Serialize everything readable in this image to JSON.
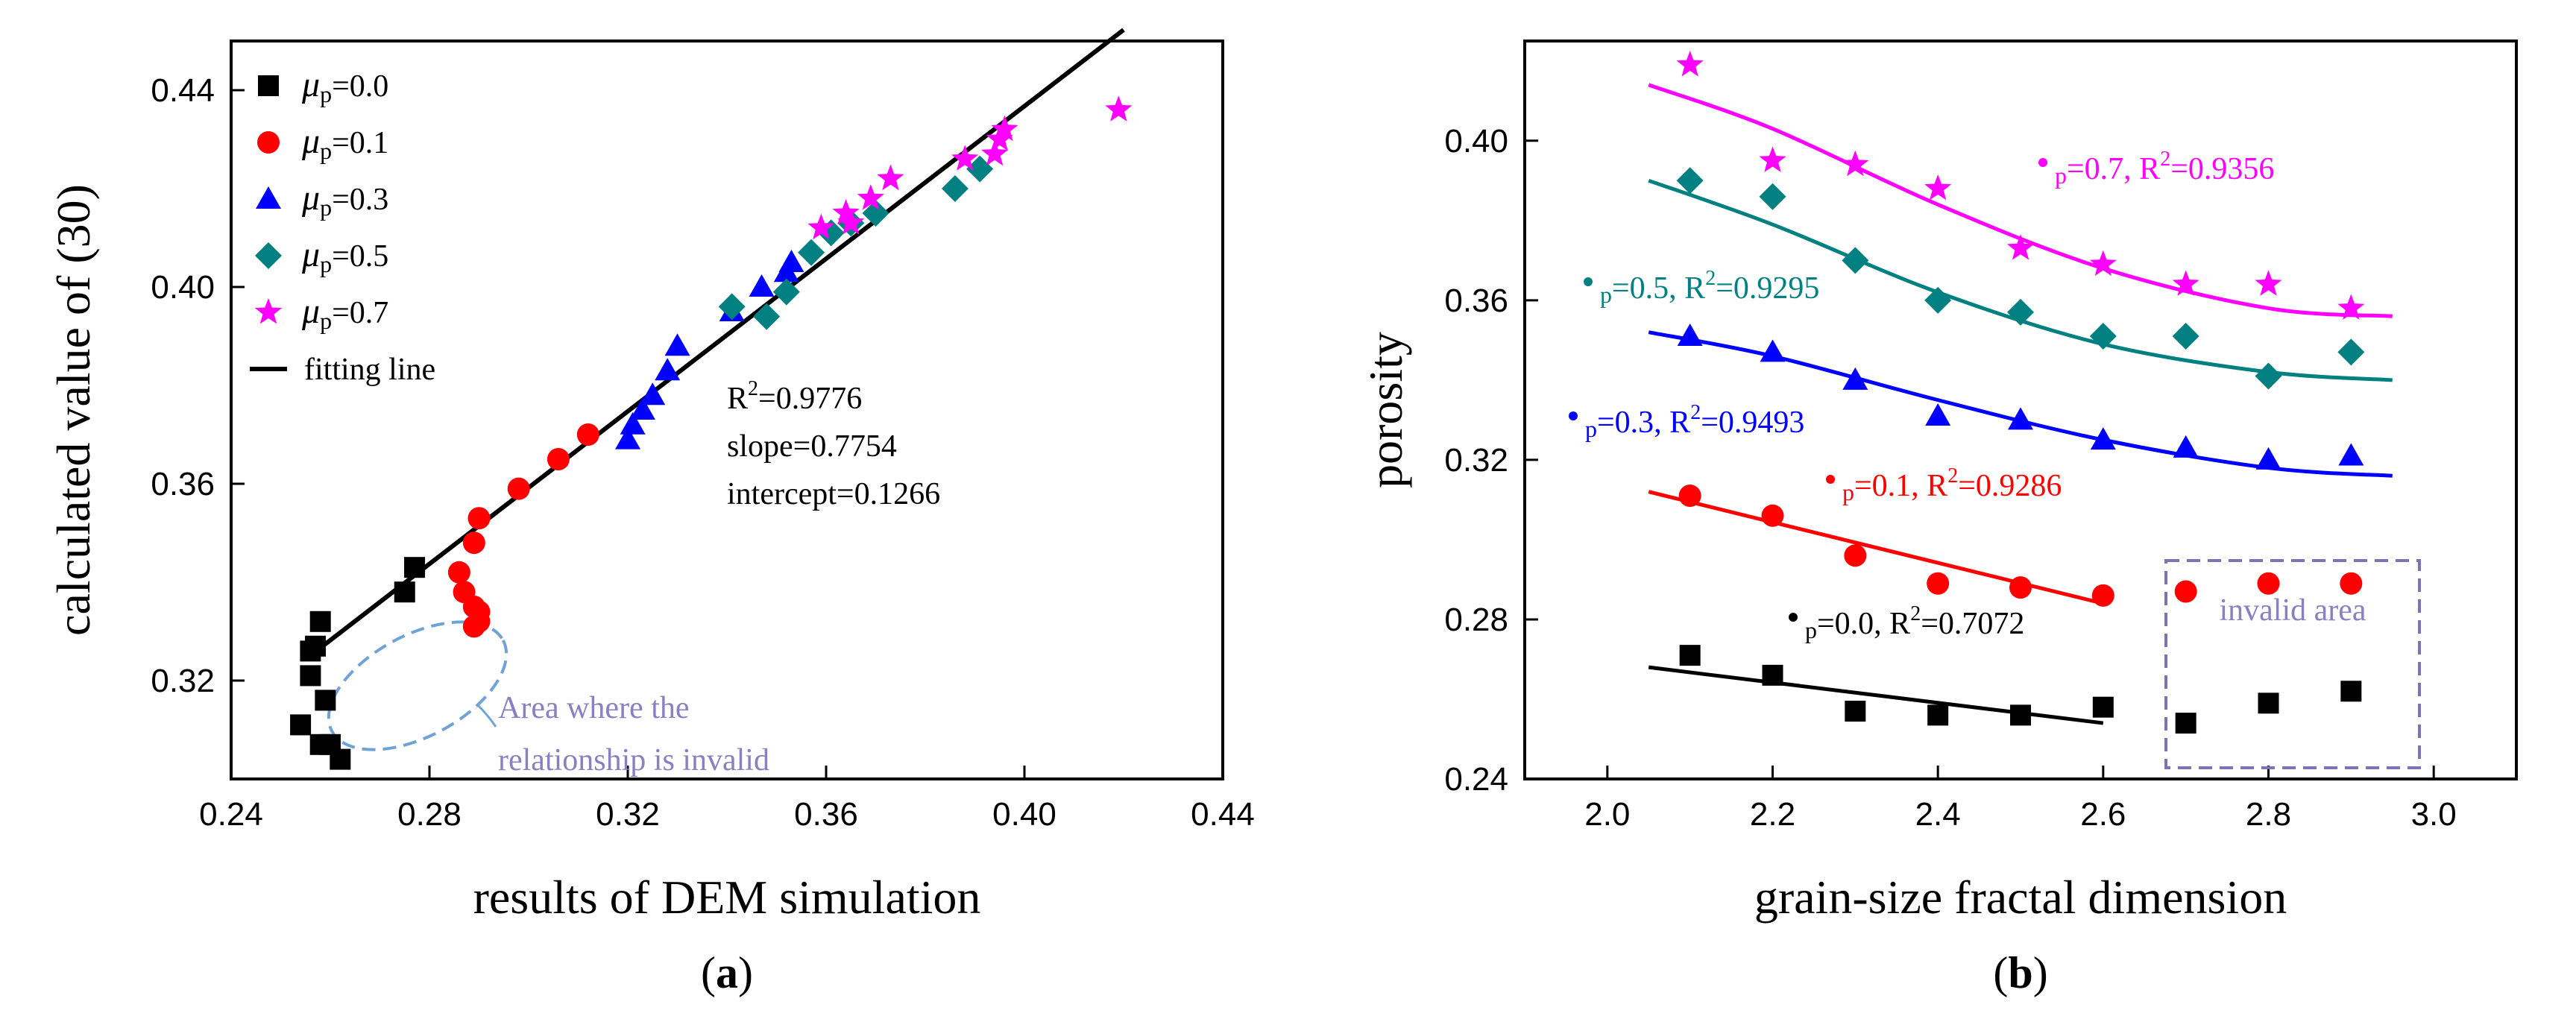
{
  "chart_data": [
    {
      "type": "scatter",
      "panel_label_open": "(",
      "panel_label_letter": "a",
      "panel_label_close": ")",
      "xlabel": "results of DEM simulation",
      "ylabel": "calculated value of (30)",
      "xlim": [
        0.24,
        0.44
      ],
      "ylim": [
        0.3,
        0.45
      ],
      "xticks": [
        "0.24",
        "0.28",
        "0.32",
        "0.36",
        "0.40",
        "0.44"
      ],
      "yticks": [
        "0.32",
        "0.36",
        "0.40",
        "0.44"
      ],
      "legend": [
        {
          "mu": "μ",
          "sub": "p",
          "value": "=0.0",
          "color": "#000000",
          "marker": "square"
        },
        {
          "mu": "μ",
          "sub": "p",
          "value": "=0.1",
          "color": "#ff0000",
          "marker": "circle"
        },
        {
          "mu": "μ",
          "sub": "p",
          "value": "=0.3",
          "color": "#0000ff",
          "marker": "triangle"
        },
        {
          "mu": "μ",
          "sub": "p",
          "value": "=0.5",
          "color": "#008080",
          "marker": "diamond"
        },
        {
          "mu": "μ",
          "sub": "p",
          "value": "=0.7",
          "color": "#ff00ff",
          "marker": "star"
        },
        {
          "label": "fitting line",
          "color": "#000000",
          "marker": "line"
        }
      ],
      "stats": {
        "r2_prefix": "R",
        "r2_sup": "2",
        "r2_value": "=0.9776",
        "slope": "slope=0.7754",
        "intercept": "intercept=0.1266"
      },
      "fit_line": {
        "slope": 0.7754,
        "intercept": 0.1266,
        "x_range": [
          0.256,
          0.42
        ]
      },
      "ellipse_note": [
        "Area where the",
        "relationship is invalid"
      ],
      "series": [
        {
          "name": "μp=0.0",
          "color": "#000000",
          "marker": "square",
          "x": [
            0.254,
            0.256,
            0.257,
            0.258,
            0.259,
            0.26,
            0.262,
            0.258,
            0.256,
            0.275,
            0.277
          ],
          "y": [
            0.311,
            0.321,
            0.327,
            0.332,
            0.316,
            0.307,
            0.304,
            0.307,
            0.326,
            0.338,
            0.343
          ]
        },
        {
          "name": "μp=0.1",
          "color": "#ff0000",
          "marker": "circle",
          "x": [
            0.286,
            0.287,
            0.289,
            0.29,
            0.29,
            0.289,
            0.289,
            0.29,
            0.298,
            0.306,
            0.312
          ],
          "y": [
            0.342,
            0.338,
            0.348,
            0.353,
            0.334,
            0.331,
            0.335,
            0.332,
            0.359,
            0.365,
            0.37
          ]
        },
        {
          "name": "μp=0.3",
          "color": "#0000ff",
          "marker": "triangle",
          "x": [
            0.32,
            0.321,
            0.323,
            0.325,
            0.328,
            0.33,
            0.341,
            0.347,
            0.352,
            0.353
          ],
          "y": [
            0.369,
            0.372,
            0.375,
            0.378,
            0.383,
            0.388,
            0.395,
            0.4,
            0.403,
            0.405
          ]
        },
        {
          "name": "μp=0.5",
          "color": "#008080",
          "marker": "diamond",
          "x": [
            0.341,
            0.348,
            0.352,
            0.357,
            0.361,
            0.365,
            0.37,
            0.386,
            0.391
          ],
          "y": [
            0.396,
            0.394,
            0.399,
            0.407,
            0.411,
            0.413,
            0.415,
            0.42,
            0.424
          ]
        },
        {
          "name": "μp=0.7",
          "color": "#ff00ff",
          "marker": "star",
          "x": [
            0.359,
            0.364,
            0.365,
            0.369,
            0.373,
            0.388,
            0.394,
            0.395,
            0.396,
            0.419
          ],
          "y": [
            0.412,
            0.415,
            0.413,
            0.418,
            0.422,
            0.426,
            0.427,
            0.43,
            0.432,
            0.436
          ]
        }
      ]
    },
    {
      "type": "scatter",
      "panel_label_open": "(",
      "panel_label_letter": "b",
      "panel_label_close": ")",
      "xlabel": "grain-size fractal dimension",
      "ylabel": "porosity",
      "xlim": [
        1.9,
        3.1
      ],
      "ylim": [
        0.24,
        0.425
      ],
      "xticks": [
        "2.0",
        "2.2",
        "2.4",
        "2.6",
        "2.8",
        "3.0"
      ],
      "yticks": [
        "0.24",
        "0.28",
        "0.32",
        "0.36",
        "0.40"
      ],
      "invalid_area_label": "invalid area",
      "series": [
        {
          "name": "μp=0.7",
          "color": "#ff00ff",
          "marker": "star",
          "x": [
            2.1,
            2.2,
            2.3,
            2.4,
            2.5,
            2.6,
            2.7,
            2.8,
            2.9
          ],
          "y": [
            0.419,
            0.395,
            0.394,
            0.388,
            0.373,
            0.369,
            0.364,
            0.364,
            0.358
          ],
          "fit": {
            "x": [
              2.05,
              2.2,
              2.4,
              2.6,
              2.8,
              2.95
            ],
            "y": [
              0.414,
              0.403,
              0.384,
              0.368,
              0.358,
              0.356
            ]
          },
          "annotation": {
            "sub": "p",
            "text": "=0.7, R",
            "sup": "2",
            "value": "=0.9356"
          }
        },
        {
          "name": "μp=0.5",
          "color": "#008080",
          "marker": "diamond",
          "x": [
            2.1,
            2.2,
            2.3,
            2.4,
            2.5,
            2.6,
            2.7,
            2.8,
            2.9
          ],
          "y": [
            0.39,
            0.386,
            0.37,
            0.36,
            0.357,
            0.351,
            0.351,
            0.341,
            0.347
          ],
          "fit": {
            "x": [
              2.05,
              2.2,
              2.4,
              2.6,
              2.8,
              2.95
            ],
            "y": [
              0.39,
              0.379,
              0.362,
              0.349,
              0.342,
              0.34
            ]
          },
          "annotation": {
            "sub": "p",
            "text": "=0.5, R",
            "sup": "2",
            "value": "=0.9295"
          }
        },
        {
          "name": "μp=0.3",
          "color": "#0000ff",
          "marker": "triangle",
          "x": [
            2.1,
            2.2,
            2.3,
            2.4,
            2.5,
            2.6,
            2.7,
            2.8,
            2.9
          ],
          "y": [
            0.351,
            0.347,
            0.34,
            0.331,
            0.33,
            0.325,
            0.323,
            0.32,
            0.321
          ],
          "fit": {
            "x": [
              2.05,
              2.2,
              2.4,
              2.6,
              2.8,
              2.95
            ],
            "y": [
              0.352,
              0.346,
              0.335,
              0.325,
              0.318,
              0.316
            ]
          },
          "annotation": {
            "sub": "p",
            "text": "=0.3, R",
            "sup": "2",
            "value": "=0.9493"
          }
        },
        {
          "name": "μp=0.1",
          "color": "#ff0000",
          "marker": "circle",
          "x": [
            2.1,
            2.2,
            2.3,
            2.4,
            2.5,
            2.6,
            2.7,
            2.8,
            2.9
          ],
          "y": [
            0.311,
            0.306,
            0.296,
            0.289,
            0.288,
            0.286,
            0.287,
            0.289,
            0.289
          ],
          "fit": {
            "x": [
              2.05,
              2.6
            ],
            "y": [
              0.312,
              0.284
            ]
          },
          "annotation": {
            "sub": "p",
            "text": "=0.1, R",
            "sup": "2",
            "value": "=0.9286"
          }
        },
        {
          "name": "μp=0.0",
          "color": "#000000",
          "marker": "square",
          "x": [
            2.1,
            2.2,
            2.3,
            2.4,
            2.5,
            2.6,
            2.7,
            2.8,
            2.9
          ],
          "y": [
            0.271,
            0.266,
            0.257,
            0.256,
            0.256,
            0.258,
            0.254,
            0.259,
            0.262
          ],
          "fit": {
            "x": [
              2.05,
              2.6
            ],
            "y": [
              0.268,
              0.254
            ]
          },
          "annotation": {
            "sub": "p",
            "text": "=0.0, R",
            "sup": "2",
            "value": "=0.7072"
          }
        }
      ]
    }
  ]
}
